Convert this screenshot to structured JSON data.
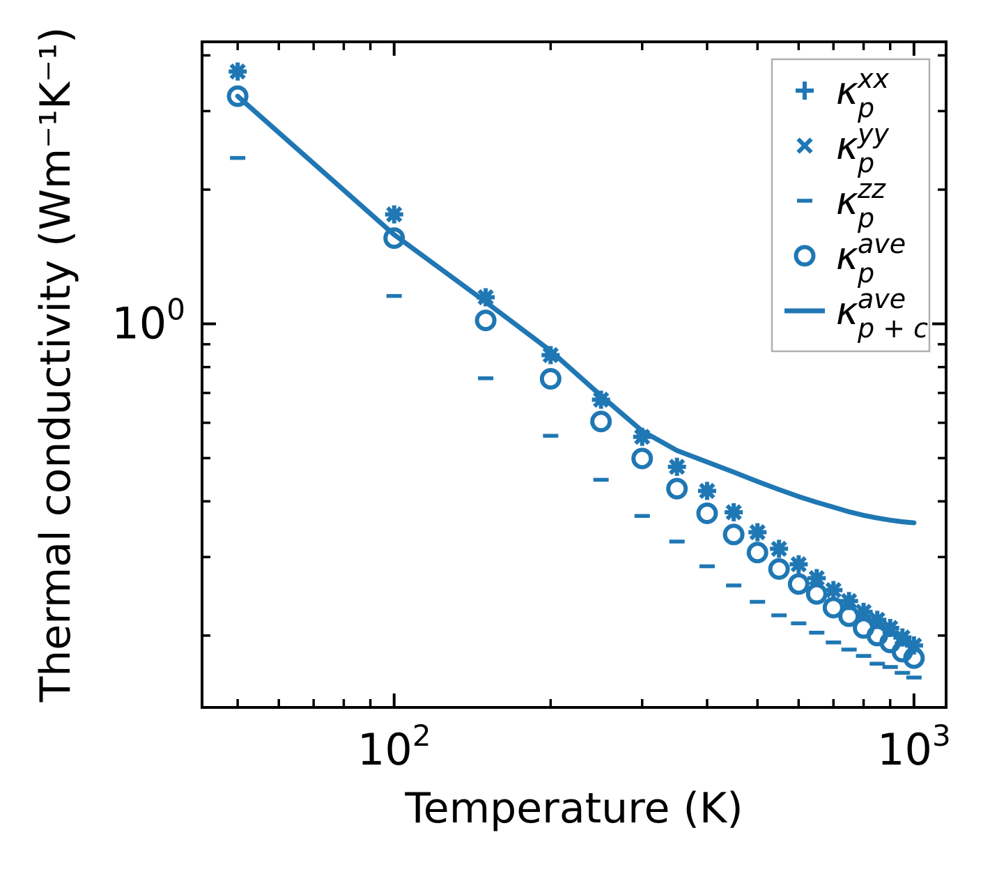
{
  "chart_data": {
    "type": "scatter",
    "title": "",
    "xlabel": "Temperature (K)",
    "ylabel": "Thermal conductivity (Wm⁻¹K⁻¹)",
    "x_scale": "log",
    "y_scale": "log",
    "xlim": [
      42.7,
      1153
    ],
    "ylim": [
      0.138,
      4.29
    ],
    "grid": false,
    "legend_position": "upper right",
    "accent_color": "#1f77b4",
    "axis_color": "#000000",
    "legend_border_color": "#b0b0b0",
    "x": [
      50,
      100,
      150,
      200,
      250,
      300,
      350,
      400,
      450,
      500,
      550,
      600,
      650,
      700,
      750,
      800,
      850,
      900,
      950,
      1000
    ],
    "series": [
      {
        "name": "kappa-p-xx",
        "marker": "plus",
        "label": {
          "base": "κ",
          "sub": "p",
          "sup": "xx"
        },
        "values": [
          3.68,
          1.76,
          1.147,
          0.851,
          0.676,
          0.558,
          0.478,
          0.422,
          0.378,
          0.341,
          0.313,
          0.289,
          0.269,
          0.253,
          0.239,
          0.226,
          0.217,
          0.208,
          0.198,
          0.19
        ]
      },
      {
        "name": "kappa-p-yy",
        "marker": "cross",
        "label": {
          "base": "κ",
          "sub": "p",
          "sup": "yy"
        },
        "values": [
          3.68,
          1.76,
          1.147,
          0.851,
          0.676,
          0.558,
          0.478,
          0.422,
          0.378,
          0.341,
          0.313,
          0.289,
          0.269,
          0.253,
          0.239,
          0.226,
          0.217,
          0.208,
          0.198,
          0.19
        ]
      },
      {
        "name": "kappa-p-zz",
        "marker": "minus",
        "label": {
          "base": "κ",
          "sub": "p",
          "sup": "zz"
        },
        "values": [
          2.355,
          1.155,
          0.755,
          0.561,
          0.447,
          0.371,
          0.325,
          0.286,
          0.259,
          0.238,
          0.222,
          0.213,
          0.203,
          0.193,
          0.186,
          0.18,
          0.173,
          0.17,
          0.165,
          0.161
        ]
      },
      {
        "name": "kappa-p-ave",
        "marker": "circle",
        "label": {
          "base": "κ",
          "sub": "p",
          "sup": "ave"
        },
        "values": [
          3.24,
          1.557,
          1.018,
          0.753,
          0.604,
          0.499,
          0.427,
          0.376,
          0.337,
          0.307,
          0.282,
          0.261,
          0.248,
          0.231,
          0.221,
          0.208,
          0.2,
          0.193,
          0.184,
          0.178
        ]
      },
      {
        "name": "kappa-p-plus-c-ave",
        "marker": "line",
        "label": {
          "base": "κ",
          "sub": "p + c",
          "sup": "ave"
        },
        "values": [
          3.24,
          1.585,
          1.12,
          0.87,
          0.69,
          0.575,
          0.52,
          0.49,
          0.465,
          0.443,
          0.425,
          0.41,
          0.398,
          0.388,
          0.379,
          0.372,
          0.367,
          0.363,
          0.36,
          0.358
        ]
      }
    ],
    "x_ticks": {
      "major": [
        {
          "value": 100,
          "mantissa": "10",
          "exponent": "2"
        },
        {
          "value": 1000,
          "mantissa": "10",
          "exponent": "3"
        }
      ],
      "minor": [
        50,
        60,
        70,
        80,
        90,
        200,
        300,
        400,
        500,
        600,
        700,
        800,
        900
      ]
    },
    "y_ticks": {
      "major": [
        {
          "value": 1,
          "mantissa": "10",
          "exponent": "0"
        }
      ],
      "minor": [
        4,
        3,
        2,
        0.9,
        0.8,
        0.7,
        0.6,
        0.5,
        0.4,
        0.3,
        0.2
      ]
    }
  }
}
